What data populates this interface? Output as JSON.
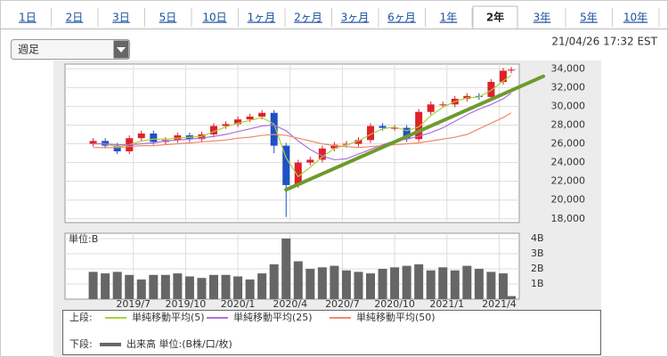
{
  "tabs": [
    {
      "label": "1日"
    },
    {
      "label": "2日"
    },
    {
      "label": "3日"
    },
    {
      "label": "5日"
    },
    {
      "label": "10日"
    },
    {
      "label": "1ヶ月"
    },
    {
      "label": "2ヶ月"
    },
    {
      "label": "3ヶ月"
    },
    {
      "label": "6ヶ月"
    },
    {
      "label": "1年"
    },
    {
      "label": "2年",
      "selected": true
    },
    {
      "label": "3年"
    },
    {
      "label": "5年"
    },
    {
      "label": "10年"
    }
  ],
  "dropdown": "週足",
  "timestamp": "21/04/26 17:32 EST",
  "legend_labels": {
    "upper": "上段:",
    "lower": "下段:"
  },
  "chart_data": [
    {
      "type": "candlestick",
      "x": [
        0,
        3,
        6,
        9,
        12,
        15,
        18,
        21,
        24,
        27,
        30,
        33,
        36,
        39,
        42,
        45,
        48,
        51,
        54,
        57,
        60,
        63,
        66,
        69,
        72,
        75,
        78,
        81,
        84,
        87,
        90,
        93,
        96,
        99,
        102,
        104
      ],
      "open": [
        26000,
        26300,
        25800,
        25200,
        26600,
        27100,
        26200,
        26400,
        26900,
        26500,
        27000,
        27900,
        28100,
        28600,
        28900,
        29300,
        25800,
        21600,
        24000,
        24300,
        25500,
        25900,
        26000,
        26400,
        27900,
        27700,
        27700,
        26500,
        29400,
        30200,
        30200,
        30800,
        31100,
        31000,
        32600,
        33800
      ],
      "high": [
        26600,
        26600,
        26100,
        26900,
        27400,
        27400,
        26700,
        27200,
        27200,
        27300,
        28200,
        28400,
        28900,
        29200,
        29600,
        29600,
        26100,
        24300,
        24600,
        25800,
        26200,
        26300,
        26700,
        28200,
        28200,
        28000,
        28000,
        29700,
        30500,
        30500,
        31100,
        31400,
        31400,
        32900,
        34100,
        34200
      ],
      "low": [
        25700,
        25500,
        24900,
        24900,
        26300,
        25900,
        25900,
        26100,
        26200,
        26200,
        26700,
        27600,
        27800,
        28300,
        28600,
        25000,
        18200,
        21300,
        23700,
        24000,
        25200,
        25600,
        25700,
        26100,
        27400,
        27400,
        26200,
        26200,
        29100,
        29900,
        29900,
        30500,
        30700,
        30700,
        32300,
        33500
      ],
      "close": [
        26300,
        25800,
        25200,
        26600,
        27100,
        26200,
        26400,
        26900,
        26500,
        27000,
        27900,
        28100,
        28600,
        28900,
        29300,
        25800,
        21600,
        24000,
        24300,
        25500,
        25900,
        26000,
        26400,
        27900,
        27700,
        27700,
        26500,
        29400,
        30200,
        30200,
        30800,
        31100,
        31000,
        32600,
        33800,
        33900
      ],
      "up_color": "#e0202a",
      "down_color": "#1e50c8",
      "series": [
        {
          "name": "単純移動平均(5)",
          "color": "#a8d23a",
          "values": [
            26000,
            26000,
            25700,
            25900,
            26300,
            26500,
            26500,
            26600,
            26700,
            26800,
            27300,
            27800,
            28200,
            28500,
            28800,
            28100,
            24500,
            22500,
            23500,
            24600,
            25500,
            25900,
            26300,
            27000,
            27600,
            27800,
            27400,
            27800,
            29000,
            29900,
            30500,
            30900,
            31000,
            31700,
            32700,
            33300
          ]
        },
        {
          "name": "単純移動平均(25)",
          "color": "#b070d8",
          "values": [
            26000,
            26000,
            25900,
            25900,
            26000,
            26100,
            26300,
            26400,
            26500,
            26600,
            26800,
            27000,
            27300,
            27600,
            27900,
            28000,
            27400,
            26300,
            25400,
            24700,
            24300,
            24400,
            24900,
            25400,
            25900,
            26300,
            26500,
            26800,
            27200,
            27700,
            28400,
            29100,
            29700,
            30200,
            30800,
            31400
          ]
        },
        {
          "name": "単純移動平均(50)",
          "color": "#f08a6a",
          "values": [
            25600,
            25600,
            25600,
            25700,
            25800,
            25800,
            25900,
            26000,
            26100,
            26200,
            26300,
            26400,
            26600,
            26700,
            26900,
            27000,
            26900,
            26600,
            26300,
            26000,
            25800,
            25700,
            25600,
            25700,
            25800,
            25900,
            26000,
            26100,
            26300,
            26500,
            26700,
            27000,
            27600,
            28200,
            28800,
            29300
          ]
        }
      ],
      "trendline": {
        "color": "#6e9a2e",
        "x": [
          48,
          112
        ],
        "values": [
          21100,
          33200
        ]
      },
      "xlim": [
        -7,
        106
      ],
      "xticks": [
        {
          "value": 10,
          "label": "2019/7"
        },
        {
          "value": 23,
          "label": "2019/10"
        },
        {
          "value": 36,
          "label": "2020/1"
        },
        {
          "value": 49,
          "label": "2020/4"
        },
        {
          "value": 62,
          "label": "2020/7"
        },
        {
          "value": 75,
          "label": "2020/10"
        },
        {
          "value": 88,
          "label": "2021/1"
        },
        {
          "value": 101,
          "label": "2021/4"
        }
      ],
      "ylim": [
        17600,
        34500
      ],
      "yticks": [
        {
          "value": 18000,
          "label": "18,000"
        },
        {
          "value": 20000,
          "label": "20,000"
        },
        {
          "value": 22000,
          "label": "22,000"
        },
        {
          "value": 24000,
          "label": "24,000"
        },
        {
          "value": 26000,
          "label": "26,000"
        },
        {
          "value": 28000,
          "label": "28,000"
        },
        {
          "value": 30000,
          "label": "30,000"
        },
        {
          "value": 32000,
          "label": "32,000"
        },
        {
          "value": 34000,
          "label": "34,000"
        }
      ],
      "grid": true
    },
    {
      "type": "bar",
      "unit_label": "単位:B",
      "x": [
        0,
        3,
        6,
        9,
        12,
        15,
        18,
        21,
        24,
        27,
        30,
        33,
        36,
        39,
        42,
        45,
        48,
        51,
        54,
        57,
        60,
        63,
        66,
        69,
        72,
        75,
        78,
        81,
        84,
        87,
        90,
        93,
        96,
        99,
        102,
        104
      ],
      "series": [
        {
          "name": "出来高 単位:(B株/口/枚)",
          "color": "#666666",
          "values": [
            1.8,
            1.7,
            1.8,
            1.6,
            1.3,
            1.6,
            1.6,
            1.7,
            1.5,
            1.4,
            1.6,
            1.6,
            1.5,
            1.3,
            1.7,
            2.3,
            4.0,
            2.5,
            2.0,
            2.1,
            2.2,
            1.9,
            1.8,
            1.7,
            2.0,
            2.1,
            2.2,
            2.3,
            1.9,
            2.1,
            1.9,
            2.2,
            2.0,
            1.8,
            1.7,
            0.2
          ]
        }
      ],
      "xlim": [
        -7,
        106
      ],
      "ylim": [
        0,
        4.35
      ],
      "yticks": [
        {
          "value": 1,
          "label": "1B"
        },
        {
          "value": 2,
          "label": "2B"
        },
        {
          "value": 3,
          "label": "3B"
        },
        {
          "value": 4,
          "label": "4B"
        }
      ],
      "grid": true
    }
  ]
}
